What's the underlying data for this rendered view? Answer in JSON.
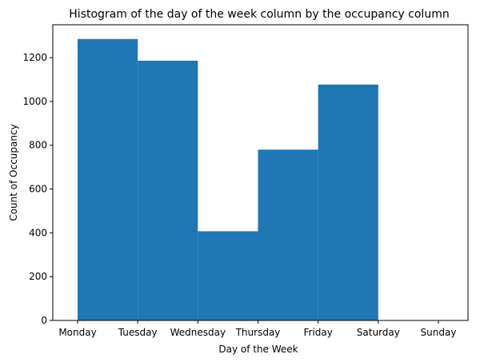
{
  "chart_data": {
    "type": "bar",
    "title": "Histogram of the day of the week column by the occupancy column",
    "xlabel": "Day of the Week",
    "ylabel": "Count of Occupancy",
    "categories": [
      "Monday",
      "Tuesday",
      "Wednesday",
      "Thursday",
      "Friday",
      "Saturday",
      "Sunday"
    ],
    "values": [
      1285,
      1186,
      407,
      780,
      1077,
      0,
      0
    ],
    "yticks": [
      0,
      200,
      400,
      600,
      800,
      1000,
      1200
    ],
    "ylim": [
      0,
      1350
    ],
    "grid": false,
    "bar_color": "#1f77b4"
  }
}
